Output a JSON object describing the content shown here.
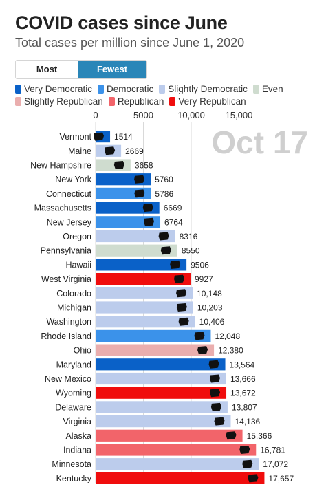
{
  "header": {
    "title": "COVID cases since June",
    "subtitle": "Total cases per million since June 1, 2020"
  },
  "toggle": {
    "most_label": "Most cases",
    "fewest_label": "Fewest cases",
    "active": "fewest"
  },
  "legend": [
    {
      "label": "Very Democratic",
      "color": "#0a61c8"
    },
    {
      "label": "Democratic",
      "color": "#3b92ea"
    },
    {
      "label": "Slightly Democratic",
      "color": "#bcccec"
    },
    {
      "label": "Even",
      "color": "#cfdccf"
    },
    {
      "label": "Slightly Republican",
      "color": "#eaaeae"
    },
    {
      "label": "Republican",
      "color": "#f2646a"
    },
    {
      "label": "Very Republican",
      "color": "#f00d0d"
    }
  ],
  "chart_data": {
    "type": "bar",
    "orientation": "horizontal",
    "date_label": "Oct 17",
    "xlim": [
      0,
      17700
    ],
    "xticks": [
      0,
      5000,
      10000,
      15000
    ],
    "xtick_labels": [
      "0",
      "5000",
      "10,000",
      "15,000"
    ],
    "grid": true,
    "bars": [
      {
        "state": "Vermont",
        "value": 1514,
        "label": "1514",
        "lean": "Very Democratic"
      },
      {
        "state": "Maine",
        "value": 2669,
        "label": "2669",
        "lean": "Slightly Democratic"
      },
      {
        "state": "New Hampshire",
        "value": 3658,
        "label": "3658",
        "lean": "Even"
      },
      {
        "state": "New York",
        "value": 5760,
        "label": "5760",
        "lean": "Very Democratic"
      },
      {
        "state": "Connecticut",
        "value": 5786,
        "label": "5786",
        "lean": "Democratic"
      },
      {
        "state": "Massachusetts",
        "value": 6669,
        "label": "6669",
        "lean": "Very Democratic"
      },
      {
        "state": "New Jersey",
        "value": 6764,
        "label": "6764",
        "lean": "Democratic"
      },
      {
        "state": "Oregon",
        "value": 8316,
        "label": "8316",
        "lean": "Slightly Democratic"
      },
      {
        "state": "Pennsylvania",
        "value": 8550,
        "label": "8550",
        "lean": "Even"
      },
      {
        "state": "Hawaii",
        "value": 9506,
        "label": "9506",
        "lean": "Very Democratic"
      },
      {
        "state": "West Virginia",
        "value": 9927,
        "label": "9927",
        "lean": "Very Republican"
      },
      {
        "state": "Colorado",
        "value": 10148,
        "label": "10,148",
        "lean": "Slightly Democratic"
      },
      {
        "state": "Michigan",
        "value": 10203,
        "label": "10,203",
        "lean": "Slightly Democratic"
      },
      {
        "state": "Washington",
        "value": 10406,
        "label": "10,406",
        "lean": "Slightly Democratic"
      },
      {
        "state": "Rhode Island",
        "value": 12048,
        "label": "12,048",
        "lean": "Democratic"
      },
      {
        "state": "Ohio",
        "value": 12380,
        "label": "12,380",
        "lean": "Slightly Republican"
      },
      {
        "state": "Maryland",
        "value": 13564,
        "label": "13,564",
        "lean": "Very Democratic"
      },
      {
        "state": "New Mexico",
        "value": 13666,
        "label": "13,666",
        "lean": "Slightly Democratic"
      },
      {
        "state": "Wyoming",
        "value": 13672,
        "label": "13,672",
        "lean": "Very Republican"
      },
      {
        "state": "Delaware",
        "value": 13807,
        "label": "13,807",
        "lean": "Slightly Democratic"
      },
      {
        "state": "Virginia",
        "value": 14136,
        "label": "14,136",
        "lean": "Slightly Democratic"
      },
      {
        "state": "Alaska",
        "value": 15366,
        "label": "15,366",
        "lean": "Republican"
      },
      {
        "state": "Indiana",
        "value": 16781,
        "label": "16,781",
        "lean": "Republican"
      },
      {
        "state": "Minnesota",
        "value": 17072,
        "label": "17,072",
        "lean": "Slightly Democratic"
      },
      {
        "state": "Kentucky",
        "value": 17657,
        "label": "17,657",
        "lean": "Very Republican"
      }
    ]
  }
}
